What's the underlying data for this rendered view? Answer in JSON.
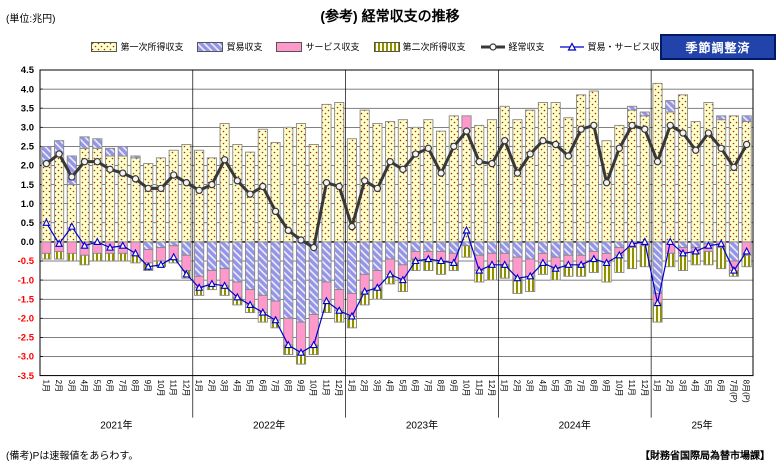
{
  "title": "(参考) 経常収支の推移",
  "unit_label": "(単位:兆円)",
  "badge_label": "季節調整済",
  "footer": {
    "note": "(備考)Pは速報値をあらわす。",
    "credit": "【財務省国際局為替市場課】"
  },
  "colors": {
    "badge_bg": "#2244AA",
    "negative_tick": "#FF0000",
    "current_account_line": "#383838",
    "trade_services_line": "#0000CC",
    "bar_border": "#888888",
    "primary_income_fill": "#FFFFCC",
    "primary_income_dot": "#993300",
    "trade_fill": "#9595E8",
    "services_fill": "#FF99CC",
    "secondary_stripe": "#8F8F00"
  },
  "legend": {
    "items": [
      {
        "label": "第一次所得収支",
        "swatch": "dots-yellow"
      },
      {
        "label": "貿易収支",
        "swatch": "diag-blue"
      },
      {
        "label": "サービス収支",
        "swatch": "solid-pink"
      },
      {
        "label": "第二次所得収支",
        "swatch": "vstripe-olive"
      },
      {
        "label": "経常収支",
        "swatch": "line-circle"
      },
      {
        "label": "貿易・サービス収支",
        "swatch": "line-triangle"
      }
    ]
  },
  "chart_data": {
    "type": "bar",
    "subtype": "stacked-bars-with-lines",
    "ylabel": "兆円",
    "ylim": [
      -3.5,
      4.5
    ],
    "ytick_step": 0.5,
    "grid": true,
    "legend_position": "top",
    "categories": [
      "1月",
      "2月",
      "3月",
      "4月",
      "5月",
      "6月",
      "7月",
      "8月",
      "9月",
      "10月",
      "11月",
      "12月",
      "1月",
      "2月",
      "3月",
      "4月",
      "5月",
      "6月",
      "7月",
      "8月",
      "9月",
      "10月",
      "11月",
      "12月",
      "1月",
      "2月",
      "3月",
      "4月",
      "5月",
      "6月",
      "7月",
      "8月",
      "9月",
      "10月",
      "11月",
      "12月",
      "1月",
      "2月",
      "3月",
      "4月",
      "5月",
      "6月",
      "7月",
      "8月",
      "9月",
      "10月",
      "11月",
      "12月",
      "1月",
      "2月",
      "3月",
      "4月",
      "5月",
      "6月",
      "7月(P)",
      "8月(P)"
    ],
    "year_groups": [
      {
        "label": "2021年",
        "count": 12
      },
      {
        "label": "2022年",
        "count": 12
      },
      {
        "label": "2023年",
        "count": 12
      },
      {
        "label": "2024年",
        "count": 12
      },
      {
        "label": "25年",
        "count": 8
      }
    ],
    "bar_series": [
      {
        "name": "第一次所得収支",
        "pattern": "dots-yellow",
        "values": [
          2.05,
          2.3,
          1.5,
          2.45,
          2.45,
          2.25,
          2.25,
          2.2,
          2.05,
          2.2,
          2.4,
          2.55,
          2.4,
          2.2,
          3.1,
          2.55,
          2.35,
          2.95,
          2.6,
          3.0,
          3.1,
          2.55,
          3.6,
          3.65,
          2.7,
          3.45,
          3.1,
          3.15,
          3.2,
          3.0,
          3.2,
          2.9,
          3.3,
          2.9,
          3.05,
          3.2,
          3.55,
          3.2,
          3.45,
          3.65,
          3.65,
          3.25,
          3.85,
          3.95,
          2.65,
          3.05,
          3.45,
          3.3,
          4.15,
          3.4,
          3.85,
          3.15,
          3.65,
          3.2,
          3.3,
          3.15
        ]
      },
      {
        "name": "貿易収支",
        "pattern": "diag-blue",
        "values": [
          0.45,
          0.35,
          0.75,
          0.3,
          0.25,
          0.2,
          0.25,
          0.05,
          -0.2,
          -0.15,
          -0.1,
          -0.35,
          -0.9,
          -0.75,
          -0.7,
          -1.05,
          -1.25,
          -1.4,
          -1.55,
          -2.0,
          -2.1,
          -1.9,
          -1.05,
          -1.25,
          -1.35,
          -0.85,
          -0.75,
          -0.45,
          -0.6,
          -0.25,
          -0.25,
          -0.25,
          -0.3,
          -0.1,
          -0.35,
          -0.3,
          -0.3,
          -0.4,
          -0.45,
          -0.3,
          -0.4,
          -0.35,
          -0.35,
          -0.25,
          -0.3,
          -0.15,
          0.1,
          0.1,
          -1.35,
          0.3,
          -0.15,
          -0.15,
          -0.05,
          0.1,
          -0.5,
          0.15
        ]
      },
      {
        "name": "サービス収支",
        "pattern": "solid-pink",
        "values": [
          -0.3,
          -0.25,
          -0.3,
          -0.35,
          -0.3,
          -0.3,
          -0.3,
          -0.35,
          -0.35,
          -0.35,
          -0.35,
          -0.4,
          -0.3,
          -0.35,
          -0.45,
          -0.4,
          -0.4,
          -0.45,
          -0.5,
          -0.7,
          -0.8,
          -0.8,
          -0.5,
          -0.55,
          -0.6,
          -0.45,
          -0.45,
          -0.4,
          -0.4,
          -0.2,
          -0.2,
          -0.25,
          -0.25,
          0.4,
          -0.4,
          -0.3,
          -0.3,
          -0.55,
          -0.45,
          -0.25,
          -0.3,
          -0.25,
          -0.25,
          -0.2,
          -0.25,
          -0.2,
          -0.15,
          -0.1,
          -0.25,
          -0.3,
          -0.15,
          -0.15,
          -0.2,
          -0.15,
          -0.25,
          -0.35
        ]
      },
      {
        "name": "第二次所得収支",
        "pattern": "vstripe-olive",
        "values": [
          -0.15,
          -0.2,
          -0.2,
          -0.25,
          -0.2,
          -0.2,
          -0.2,
          -0.2,
          -0.2,
          -0.15,
          -0.1,
          -0.2,
          -0.2,
          -0.15,
          -0.25,
          -0.2,
          -0.2,
          -0.25,
          -0.2,
          -0.25,
          -0.3,
          -0.25,
          -0.3,
          -0.3,
          -0.3,
          -0.35,
          -0.3,
          -0.25,
          -0.3,
          -0.3,
          -0.3,
          -0.35,
          -0.2,
          -0.3,
          -0.3,
          -0.4,
          -0.35,
          -0.4,
          -0.4,
          -0.3,
          -0.3,
          -0.3,
          -0.3,
          -0.35,
          -0.5,
          -0.45,
          -0.55,
          -0.55,
          -0.5,
          -0.35,
          -0.45,
          -0.3,
          -0.35,
          -0.55,
          -0.15,
          -0.3
        ]
      }
    ],
    "line_series": [
      {
        "name": "経常収支",
        "color": "#383838",
        "width": 3,
        "marker": "circle",
        "values": [
          2.05,
          2.3,
          1.7,
          2.1,
          2.1,
          1.9,
          1.8,
          1.65,
          1.4,
          1.4,
          1.75,
          1.55,
          1.35,
          1.5,
          2.15,
          1.6,
          1.25,
          1.45,
          0.8,
          0.3,
          0.05,
          -0.15,
          1.55,
          1.45,
          0.4,
          1.6,
          1.4,
          2.1,
          1.9,
          2.3,
          2.45,
          1.8,
          2.5,
          2.9,
          2.1,
          2.05,
          2.65,
          1.8,
          2.3,
          2.65,
          2.55,
          2.25,
          2.95,
          3.05,
          1.55,
          2.45,
          3.05,
          2.95,
          2.1,
          3.05,
          2.85,
          2.4,
          2.85,
          2.45,
          1.95,
          2.55
        ]
      },
      {
        "name": "貿易・サービス収支",
        "color": "#0000CC",
        "width": 1.2,
        "marker": "triangle",
        "values": [
          0.5,
          -0.05,
          0.4,
          -0.1,
          0.0,
          -0.15,
          -0.1,
          -0.3,
          -0.65,
          -0.6,
          -0.4,
          -0.85,
          -1.2,
          -1.1,
          -1.15,
          -1.45,
          -1.65,
          -1.85,
          -2.05,
          -2.7,
          -2.9,
          -2.7,
          -1.55,
          -1.8,
          -1.95,
          -1.3,
          -1.2,
          -0.85,
          -1.0,
          -0.5,
          -0.45,
          -0.5,
          -0.55,
          0.3,
          -0.75,
          -0.6,
          -0.6,
          -0.95,
          -0.9,
          -0.55,
          -0.7,
          -0.6,
          -0.6,
          -0.45,
          -0.55,
          -0.35,
          -0.05,
          0.0,
          -1.6,
          0.0,
          -0.3,
          -0.25,
          -0.1,
          -0.05,
          -0.75,
          -0.25
        ]
      }
    ]
  }
}
